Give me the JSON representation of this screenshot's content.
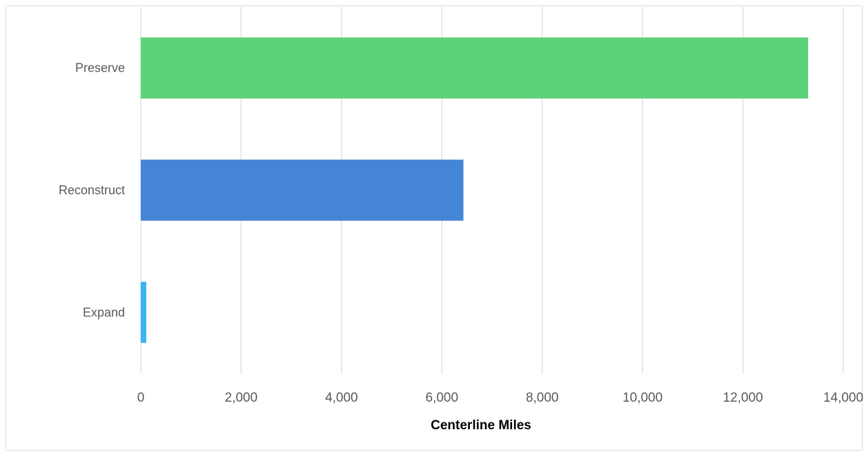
{
  "chart_data": {
    "type": "bar",
    "orientation": "horizontal",
    "categories": [
      "Preserve",
      "Reconstruct",
      "Expand"
    ],
    "values": [
      13300,
      6430,
      110
    ],
    "colors": [
      "#5cd27a",
      "#4585d6",
      "#3bb4f2"
    ],
    "xlabel": "Centerline Miles",
    "ylabel": "",
    "xlim": [
      0,
      14000
    ],
    "x_ticks": [
      0,
      2000,
      4000,
      6000,
      8000,
      10000,
      12000,
      14000
    ],
    "x_tick_labels": [
      "0",
      "2,000",
      "4,000",
      "6,000",
      "8,000",
      "10,000",
      "12,000",
      "14,000"
    ],
    "grid": true,
    "gridline_color": "#d9d9d9",
    "legend": "none"
  }
}
